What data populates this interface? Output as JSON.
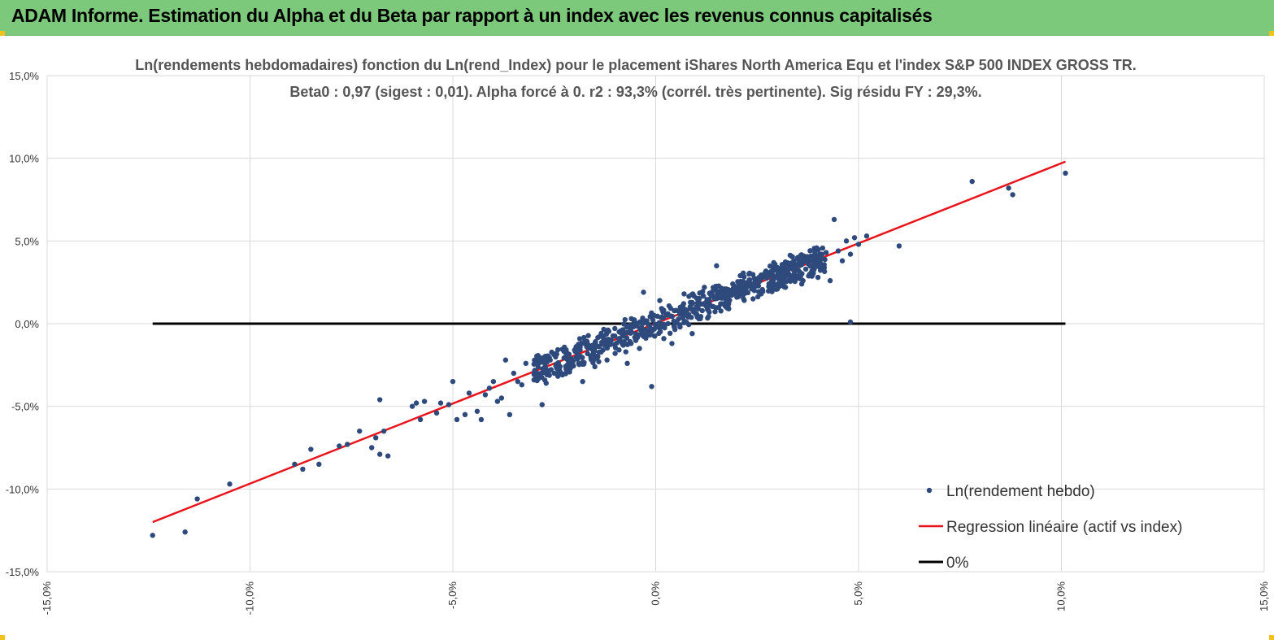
{
  "banner": {
    "title": "ADAM Informe. Estimation du Alpha et du Beta par rapport à un index avec les revenus connus capitalisés",
    "color": "#7dc97b"
  },
  "chart_data": {
    "type": "scatter",
    "title": "Ln(rendements hebdomadaires) fonction du Ln(rend_Index) pour le placement iShares North America Equ et l'index S&P 500 INDEX GROSS TR.",
    "subtitle": "Beta0 : 0,97 (sigest : 0,01). Alpha forcé à 0. r2 : 93,3% (corrél. très pertinente). Sig résidu FY : 29,3%.",
    "xlim": [
      -15,
      15
    ],
    "ylim": [
      -15,
      15
    ],
    "x_ticks": [
      "-15,0%",
      "-10,0%",
      "-5,0%",
      "0,0%",
      "5,0%",
      "10,0%",
      "15,0%"
    ],
    "y_ticks": [
      "15,0%",
      "10,0%",
      "5,0%",
      "0,0%",
      "-5,0%",
      "-10,0%",
      "-15,0%"
    ],
    "grid": true,
    "legend_position": "bottom-right",
    "series": [
      {
        "name": "Ln(rendement hebdo)",
        "color": "#2e4a7d",
        "points": [
          [
            -12.4,
            -12.8
          ],
          [
            -11.6,
            -12.6
          ],
          [
            -11.3,
            -10.6
          ],
          [
            -10.5,
            -9.7
          ],
          [
            -8.9,
            -8.5
          ],
          [
            -8.7,
            -8.8
          ],
          [
            -8.5,
            -7.6
          ],
          [
            -8.3,
            -8.5
          ],
          [
            -7.8,
            -7.4
          ],
          [
            -7.6,
            -7.3
          ],
          [
            -7.3,
            -6.5
          ],
          [
            -7.0,
            -7.5
          ],
          [
            -6.9,
            -6.9
          ],
          [
            -6.8,
            -4.6
          ],
          [
            -6.7,
            -6.5
          ],
          [
            -6.8,
            -7.9
          ],
          [
            -6.6,
            -8.0
          ],
          [
            -6.0,
            -5.0
          ],
          [
            -5.9,
            -4.8
          ],
          [
            -5.8,
            -5.8
          ],
          [
            -5.7,
            -4.7
          ],
          [
            -5.4,
            -5.4
          ],
          [
            -5.3,
            -4.8
          ],
          [
            -5.1,
            -4.9
          ],
          [
            -5.0,
            -3.5
          ],
          [
            -4.9,
            -5.8
          ],
          [
            -4.7,
            -5.5
          ],
          [
            -4.6,
            -4.2
          ],
          [
            -4.4,
            -5.3
          ],
          [
            -4.3,
            -5.8
          ],
          [
            -4.2,
            -4.3
          ],
          [
            -4.1,
            -3.9
          ],
          [
            -4.0,
            -3.5
          ],
          [
            -3.9,
            -4.7
          ],
          [
            -3.8,
            -4.5
          ],
          [
            -3.7,
            -2.2
          ],
          [
            -3.6,
            -5.5
          ],
          [
            -3.5,
            -3.0
          ],
          [
            -3.4,
            -3.5
          ],
          [
            -3.3,
            -3.7
          ],
          [
            -3.2,
            -2.4
          ],
          [
            -3.0,
            -3.4
          ],
          [
            -2.9,
            -2.6
          ],
          [
            -2.8,
            -4.9
          ],
          [
            -2.7,
            -3.6
          ],
          [
            -2.6,
            -2.2
          ],
          [
            -2.5,
            -3.0
          ],
          [
            -2.4,
            -2.4
          ],
          [
            -2.3,
            -3.1
          ],
          [
            -2.2,
            -1.9
          ],
          [
            -2.1,
            -2.7
          ],
          [
            -2.0,
            -1.6
          ],
          [
            -1.9,
            -2.4
          ],
          [
            -1.8,
            -3.5
          ],
          [
            -1.7,
            -1.4
          ],
          [
            -1.6,
            -2.0
          ],
          [
            -1.5,
            -2.6
          ],
          [
            -1.4,
            -0.8
          ],
          [
            -1.3,
            -1.6
          ],
          [
            -1.2,
            -2.2
          ],
          [
            -1.1,
            -1.0
          ],
          [
            -1.0,
            -1.8
          ],
          [
            -0.9,
            -0.5
          ],
          [
            -0.8,
            -1.3
          ],
          [
            -0.7,
            -2.4
          ],
          [
            -0.6,
            0.3
          ],
          [
            -0.5,
            -0.9
          ],
          [
            -0.4,
            -1.5
          ],
          [
            -0.3,
            1.9
          ],
          [
            -0.2,
            -0.5
          ],
          [
            -0.1,
            -3.8
          ],
          [
            0.0,
            -0.2
          ],
          [
            0.1,
            1.4
          ],
          [
            0.2,
            -0.9
          ],
          [
            0.3,
            0.6
          ],
          [
            0.4,
            -1.2
          ],
          [
            0.5,
            0.8
          ],
          [
            0.6,
            -0.2
          ],
          [
            0.7,
            1.8
          ],
          [
            0.8,
            0.4
          ],
          [
            0.9,
            -0.6
          ],
          [
            1.0,
            1.0
          ],
          [
            1.1,
            0.3
          ],
          [
            1.2,
            2.2
          ],
          [
            1.3,
            0.8
          ],
          [
            1.4,
            1.7
          ],
          [
            1.5,
            3.5
          ],
          [
            1.6,
            1.2
          ],
          [
            1.7,
            2.1
          ],
          [
            1.8,
            0.9
          ],
          [
            1.9,
            2.4
          ],
          [
            2.0,
            1.6
          ],
          [
            2.1,
            2.9
          ],
          [
            2.2,
            1.9
          ],
          [
            2.3,
            3.0
          ],
          [
            2.4,
            1.5
          ],
          [
            2.5,
            2.7
          ],
          [
            2.6,
            1.8
          ],
          [
            2.7,
            3.1
          ],
          [
            2.8,
            2.4
          ],
          [
            2.9,
            3.3
          ],
          [
            3.0,
            2.1
          ],
          [
            3.1,
            3.0
          ],
          [
            3.2,
            2.2
          ],
          [
            3.3,
            3.6
          ],
          [
            3.4,
            2.9
          ],
          [
            3.5,
            4.0
          ],
          [
            3.6,
            2.4
          ],
          [
            3.7,
            3.3
          ],
          [
            3.8,
            3.0
          ],
          [
            3.9,
            4.1
          ],
          [
            4.0,
            2.8
          ],
          [
            4.1,
            3.4
          ],
          [
            4.2,
            4.3
          ],
          [
            4.3,
            2.6
          ],
          [
            4.4,
            6.3
          ],
          [
            4.5,
            4.4
          ],
          [
            4.6,
            3.8
          ],
          [
            4.7,
            5.0
          ],
          [
            4.8,
            4.2
          ],
          [
            4.9,
            5.2
          ],
          [
            5.0,
            4.8
          ],
          [
            5.2,
            5.3
          ],
          [
            4.8,
            0.1
          ],
          [
            6.0,
            4.7
          ],
          [
            7.8,
            8.6
          ],
          [
            8.7,
            8.2
          ],
          [
            8.8,
            7.8
          ],
          [
            10.1,
            9.1
          ]
        ]
      },
      {
        "name": "Regression linéaire (actif vs index)",
        "color": "#e8141b",
        "line": [
          [
            -12.4,
            -12.0
          ],
          [
            10.1,
            9.8
          ]
        ]
      },
      {
        "name": "0%",
        "color": "#000000",
        "line": [
          [
            -12.4,
            0
          ],
          [
            10.1,
            0
          ]
        ]
      }
    ]
  }
}
